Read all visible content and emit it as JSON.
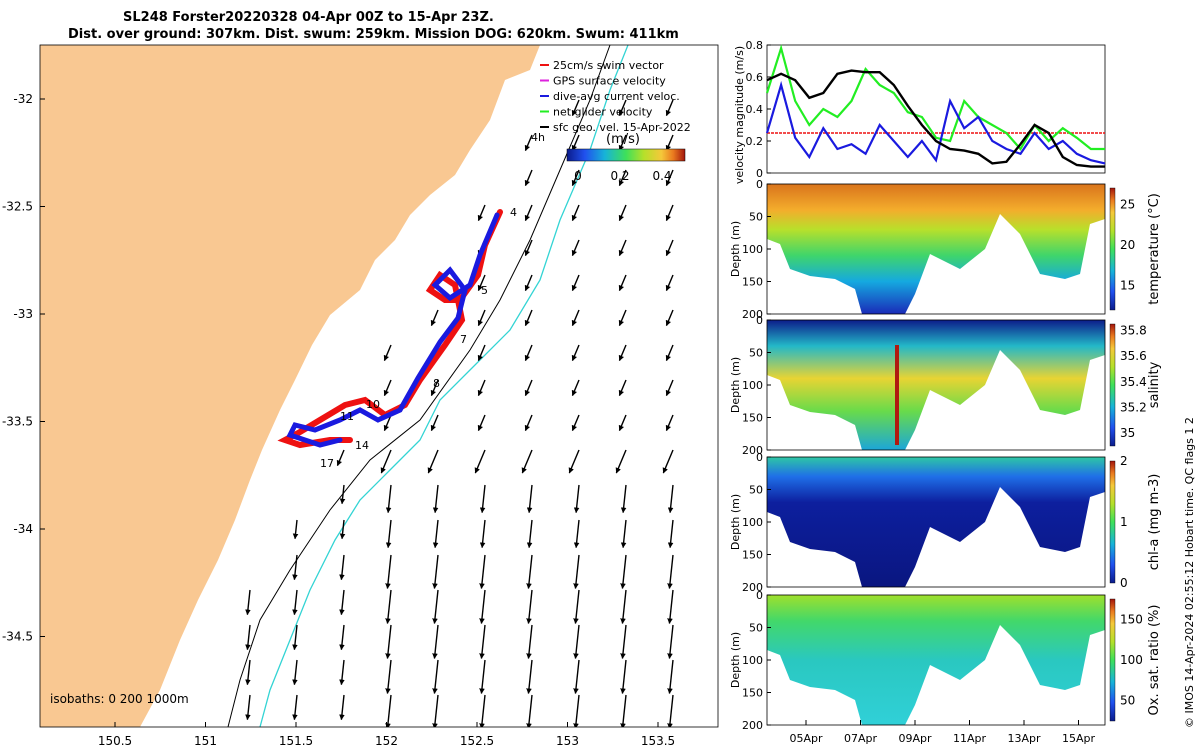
{
  "title_line1": "SL248 Forster20220328 04-Apr 00Z to 15-Apr 23Z.",
  "title_line2": "Dist. over ground: 307km. Dist. swum: 259km. Mission DOG: 620km. Swum: 411km",
  "side_note": "© IMOS 14-Apr-2024 02:55:12 Hobart time. QC flags 1  2",
  "colors": {
    "land": "#f9c892",
    "sea": "#ffffff",
    "glider_red": "#ee1111",
    "glider_blue": "#1a1adf",
    "contour_cyan": "#33d4d4",
    "green": "#22ee22",
    "black": "#000000"
  },
  "map": {
    "x_ticks": [
      "150.5",
      "151",
      "151.5",
      "152",
      "152.5",
      "153",
      "153.5"
    ],
    "y_ticks": [
      "-32",
      "-32.5",
      "-33",
      "-33.5",
      "-34",
      "-34.5"
    ],
    "legend": [
      {
        "label": "25cm/s swim vector",
        "color": "#ee1111"
      },
      {
        "label": "GPS surface velocity",
        "color": "#dd22dd"
      },
      {
        "label": "dive-avg current veloc.",
        "color": "#1a1adf"
      },
      {
        "label": "net glider velocity",
        "color": "#22ee22"
      },
      {
        "label": "sfc geo. vel. 15-Apr-2022",
        "color": "#000000"
      }
    ],
    "colorbar_title": "(m/s)",
    "colorbar_ticks": [
      "0",
      "0.2",
      "0.4"
    ],
    "scale_label": "4h",
    "track_day_labels": [
      "4",
      "5",
      "7",
      "8",
      "10",
      "11",
      "14",
      "17"
    ],
    "isobaths_label": "isobaths: 0   200  1000m"
  },
  "chart_data": [
    {
      "type": "line",
      "title": "",
      "ylabel": "velocity magnitude (m/s)",
      "ylim": [
        0,
        0.8
      ],
      "yticks": [
        "0",
        "0.2",
        "0.4",
        "0.6",
        "0.8"
      ],
      "x": [
        4,
        4.5,
        5,
        5.5,
        6,
        6.5,
        7,
        7.5,
        8,
        8.5,
        9,
        9.5,
        10,
        10.5,
        11,
        11.5,
        12,
        12.5,
        13,
        13.5,
        14,
        14.5,
        15,
        15.5,
        16
      ],
      "series": [
        {
          "name": "sfc geo. vel. 15-Apr-2022",
          "color": "#000000",
          "values": [
            0.58,
            0.62,
            0.58,
            0.47,
            0.5,
            0.62,
            0.64,
            0.63,
            0.63,
            0.55,
            0.42,
            0.3,
            0.2,
            0.15,
            0.14,
            0.12,
            0.06,
            0.07,
            0.18,
            0.3,
            0.25,
            0.1,
            0.05,
            0.04,
            0.04
          ]
        },
        {
          "name": "dive-avg current veloc.",
          "color": "#1a1adf",
          "values": [
            0.25,
            0.55,
            0.22,
            0.1,
            0.28,
            0.15,
            0.18,
            0.12,
            0.3,
            0.2,
            0.1,
            0.2,
            0.08,
            0.45,
            0.28,
            0.35,
            0.2,
            0.15,
            0.12,
            0.25,
            0.15,
            0.2,
            0.12,
            0.08,
            0.06
          ]
        },
        {
          "name": "net glider velocity",
          "color": "#22ee22",
          "values": [
            0.5,
            0.78,
            0.45,
            0.3,
            0.4,
            0.35,
            0.45,
            0.65,
            0.55,
            0.5,
            0.38,
            0.35,
            0.22,
            0.2,
            0.45,
            0.35,
            0.3,
            0.25,
            0.15,
            0.3,
            0.2,
            0.28,
            0.22,
            0.15,
            0.15
          ]
        },
        {
          "name": "25cm/s swim vector",
          "color": "#ee1111",
          "values": [
            0.25,
            0.25,
            0.25,
            0.25,
            0.25,
            0.25,
            0.25,
            0.25,
            0.25,
            0.25,
            0.25,
            0.25,
            0.25,
            0.25,
            0.25,
            0.25,
            0.25,
            0.25,
            0.25,
            0.25,
            0.25,
            0.25,
            0.25,
            0.25,
            0.25
          ]
        }
      ]
    },
    {
      "type": "heatmap",
      "ylabel": "Depth (m)",
      "variable": "temperature (°C)",
      "yticks": [
        "0",
        "50",
        "100",
        "150",
        "200"
      ],
      "colorbar_range": [
        12,
        27
      ],
      "colorbar_ticks": [
        "15",
        "20",
        "25"
      ]
    },
    {
      "type": "heatmap",
      "ylabel": "Depth (m)",
      "variable": "salinity",
      "yticks": [
        "0",
        "50",
        "100",
        "150",
        "200"
      ],
      "colorbar_range": [
        34.9,
        35.85
      ],
      "colorbar_ticks": [
        "35",
        "35.2",
        "35.4",
        "35.6",
        "35.8"
      ]
    },
    {
      "type": "heatmap",
      "ylabel": "Depth (m)",
      "variable": "chl-a (mg m-3)",
      "yticks": [
        "0",
        "50",
        "100",
        "150",
        "200"
      ],
      "colorbar_range": [
        0,
        2
      ],
      "colorbar_ticks": [
        "0",
        "1",
        "2"
      ]
    },
    {
      "type": "heatmap",
      "ylabel": "Depth (m)",
      "variable": "Ox. sat. ratio (%)",
      "yticks": [
        "0",
        "50",
        "100",
        "150",
        "200"
      ],
      "colorbar_range": [
        25,
        175
      ],
      "colorbar_ticks": [
        "50",
        "100",
        "150"
      ]
    }
  ],
  "time_axis": [
    "05Apr",
    "07Apr",
    "09Apr",
    "11Apr",
    "13Apr",
    "15Apr"
  ]
}
